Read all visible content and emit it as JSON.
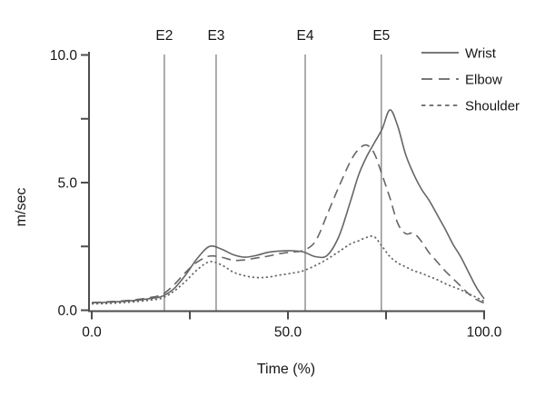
{
  "chart_data": {
    "type": "line",
    "title": "",
    "xlabel": "Time (%)",
    "ylabel": "m/sec",
    "xlim": [
      0,
      100
    ],
    "ylim": [
      0,
      10
    ],
    "grid": false,
    "legend_position": "top-right",
    "x_ticks": [
      {
        "t": 0,
        "label": "0.0"
      },
      {
        "t": 25,
        "label": ""
      },
      {
        "t": 50,
        "label": "50.0"
      },
      {
        "t": 75,
        "label": ""
      },
      {
        "t": 100,
        "label": "100.0"
      }
    ],
    "y_ticks": [
      {
        "v": 0,
        "label": "0.0"
      },
      {
        "v": 2.5,
        "label": ""
      },
      {
        "v": 5,
        "label": "5.0"
      },
      {
        "v": 7.5,
        "label": ""
      },
      {
        "v": 10,
        "label": "10.0"
      }
    ],
    "events": [
      {
        "label": "E2",
        "t": 18.5
      },
      {
        "label": "E3",
        "t": 31.7
      },
      {
        "label": "E4",
        "t": 54.4
      },
      {
        "label": "E5",
        "t": 73.8
      }
    ],
    "x": [
      0,
      3,
      6,
      9,
      12,
      15,
      18,
      21,
      24,
      27,
      30,
      33,
      36,
      39,
      42,
      45,
      48,
      51,
      54,
      57,
      60,
      63,
      66,
      68,
      70,
      72,
      74,
      76,
      78,
      80,
      82,
      84,
      86,
      88,
      90,
      92,
      94,
      96,
      98,
      100
    ],
    "series": [
      {
        "name": "Shoulder",
        "style": "dotted",
        "values": [
          0.25,
          0.26,
          0.28,
          0.31,
          0.35,
          0.4,
          0.48,
          0.75,
          1.15,
          1.6,
          1.9,
          1.78,
          1.5,
          1.35,
          1.28,
          1.3,
          1.38,
          1.45,
          1.55,
          1.75,
          2.0,
          2.3,
          2.6,
          2.72,
          2.85,
          2.88,
          2.5,
          2.1,
          1.85,
          1.7,
          1.55,
          1.45,
          1.32,
          1.2,
          1.05,
          0.92,
          0.8,
          0.65,
          0.5,
          0.35
        ]
      },
      {
        "name": "Elbow",
        "style": "dashed",
        "values": [
          0.3,
          0.32,
          0.35,
          0.38,
          0.43,
          0.5,
          0.62,
          1.0,
          1.5,
          1.9,
          2.12,
          2.08,
          1.96,
          1.97,
          2.05,
          2.12,
          2.22,
          2.28,
          2.35,
          2.7,
          3.75,
          4.85,
          5.85,
          6.3,
          6.47,
          6.15,
          5.3,
          4.4,
          3.4,
          3.0,
          3.02,
          2.7,
          2.25,
          1.9,
          1.55,
          1.25,
          0.95,
          0.65,
          0.42,
          0.28
        ]
      },
      {
        "name": "Wrist",
        "style": "solid",
        "values": [
          0.3,
          0.31,
          0.33,
          0.36,
          0.4,
          0.46,
          0.55,
          0.85,
          1.4,
          2.05,
          2.5,
          2.4,
          2.18,
          2.08,
          2.15,
          2.27,
          2.32,
          2.33,
          2.28,
          2.1,
          2.15,
          2.9,
          4.3,
          5.3,
          6.0,
          6.55,
          7.1,
          7.85,
          7.2,
          6.1,
          5.35,
          4.75,
          4.3,
          3.75,
          3.2,
          2.6,
          2.1,
          1.5,
          0.9,
          0.45
        ]
      }
    ],
    "colors": {
      "curve": "#666666",
      "event_line": "#808080",
      "axis": "#4d4d4d",
      "text": "#161616"
    }
  }
}
